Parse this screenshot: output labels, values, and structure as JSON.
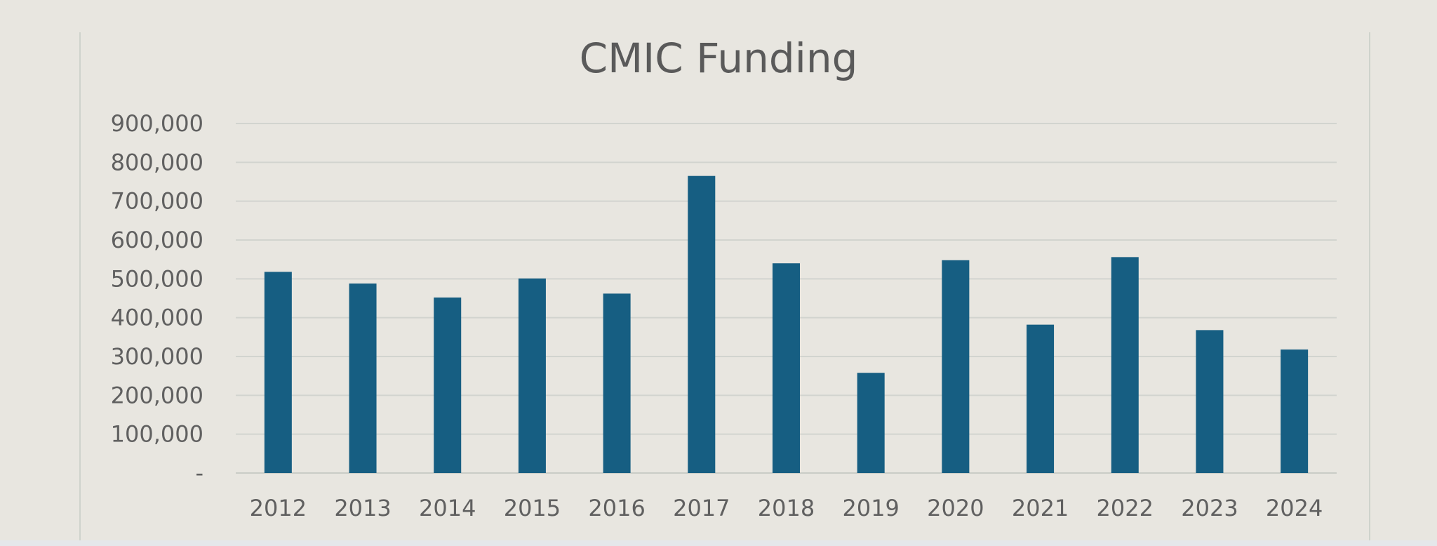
{
  "chart_data": {
    "type": "bar",
    "title": "CMIC Funding",
    "xlabel": "",
    "ylabel": "",
    "categories": [
      "2012",
      "2013",
      "2014",
      "2015",
      "2016",
      "2017",
      "2018",
      "2019",
      "2020",
      "2021",
      "2022",
      "2023",
      "2024"
    ],
    "values": [
      518000,
      488000,
      452000,
      501000,
      462000,
      765000,
      540000,
      258000,
      548000,
      382000,
      556000,
      368000,
      318000
    ],
    "ylim": [
      0,
      900000
    ],
    "yticks": [
      0,
      100000,
      200000,
      300000,
      400000,
      500000,
      600000,
      700000,
      800000,
      900000
    ],
    "ytick_labels": [
      "-",
      "100,000",
      "200,000",
      "300,000",
      "400,000",
      "500,000",
      "600,000",
      "700,000",
      "800,000",
      "900,000"
    ],
    "grid": true,
    "legend": "none",
    "bar_color": "#165e82"
  }
}
